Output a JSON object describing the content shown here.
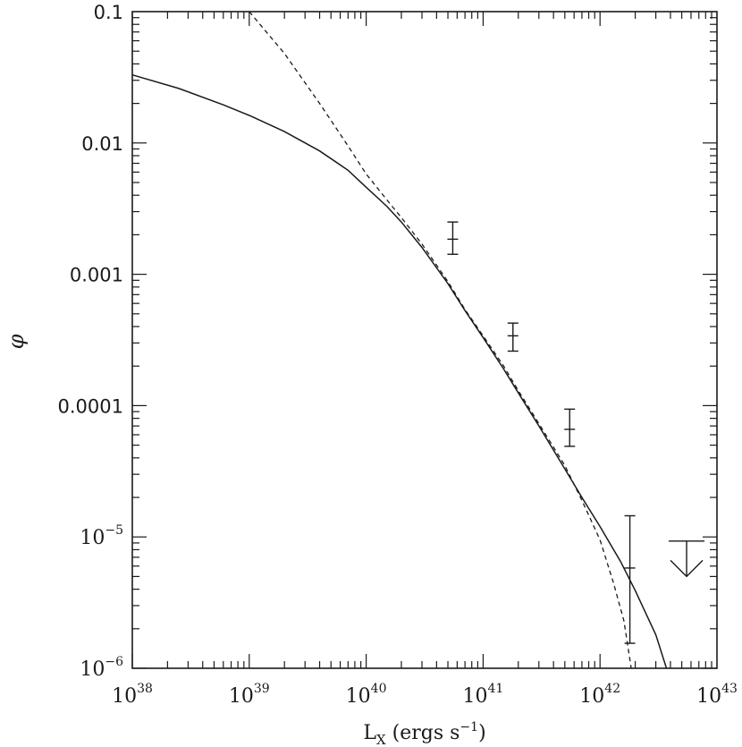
{
  "chart_data": {
    "type": "line",
    "xscale": "log",
    "yscale": "log",
    "xlim": [
      1e+38,
      1e+43
    ],
    "ylim": [
      1e-06,
      0.1
    ],
    "x_ticks": [
      {
        "value": 1e+38,
        "base": "10",
        "exp": "38"
      },
      {
        "value": 1e+39,
        "base": "10",
        "exp": "39"
      },
      {
        "value": 1e+40,
        "base": "10",
        "exp": "40"
      },
      {
        "value": 1e+41,
        "base": "10",
        "exp": "41"
      },
      {
        "value": 1e+42,
        "base": "10",
        "exp": "42"
      },
      {
        "value": 1e+43,
        "base": "10",
        "exp": "43"
      }
    ],
    "y_ticks": [
      {
        "value": 0.1,
        "text": "0.1"
      },
      {
        "value": 0.01,
        "text": "0.01"
      },
      {
        "value": 0.001,
        "text": "0.001"
      },
      {
        "value": 0.0001,
        "text": "0.0001"
      },
      {
        "value": 1e-05,
        "base": "10",
        "exp": "−5"
      },
      {
        "value": 1e-06,
        "base": "10",
        "exp": "−6"
      }
    ],
    "xlabel_parts": {
      "main": "L",
      "sub": "X",
      "rest": " (ergs s",
      "exp": "−1",
      "close": ")"
    },
    "ylabel": "φ",
    "series": [
      {
        "style": "solid",
        "x": [
          1e+38,
          2.5e+38,
          6e+38,
          1e+39,
          2e+39,
          4e+39,
          7e+39,
          1e+40,
          1.5e+40,
          2e+40,
          3e+40,
          5e+40,
          7e+40,
          1e+41,
          1.5e+41,
          2e+41,
          3e+41,
          5e+41,
          7e+41,
          1e+42,
          1.5e+42,
          2e+42,
          3e+42,
          3.7e+42
        ],
        "y": [
          0.033,
          0.026,
          0.0195,
          0.0162,
          0.0122,
          0.0087,
          0.0062,
          0.0046,
          0.0033,
          0.0025,
          0.0016,
          0.00085,
          0.00053,
          0.00033,
          0.00019,
          0.000125,
          7e-05,
          3.3e-05,
          2e-05,
          1.2e-05,
          6.5e-06,
          3.9e-06,
          1.8e-06,
          1e-06
        ]
      },
      {
        "style": "dashed",
        "x": [
          1e+39,
          2e+39,
          4e+39,
          7e+39,
          1e+40,
          1.5e+40,
          2e+40,
          3e+40,
          5e+40,
          7e+40,
          1e+41,
          1.5e+41,
          2e+41,
          3e+41,
          5e+41,
          7e+41,
          1e+42,
          1.3e+42,
          1.6e+42,
          1.85e+42
        ],
        "y": [
          0.1,
          0.048,
          0.02,
          0.0095,
          0.0058,
          0.0037,
          0.0027,
          0.0017,
          0.00088,
          0.00054,
          0.00034,
          0.0002,
          0.00013,
          7.3e-05,
          3.5e-05,
          1.9e-05,
          9.5e-06,
          4.5e-06,
          2.3e-06,
          1e-06
        ]
      }
    ],
    "data_points": [
      {
        "x": 5.5e+40,
        "y": 0.00185,
        "ylo": 0.00142,
        "yhi": 0.0025
      },
      {
        "x": 1.8e+41,
        "y": 0.00034,
        "ylo": 0.00026,
        "yhi": 0.000425
      },
      {
        "x": 5.5e+41,
        "y": 6.6e-05,
        "ylo": 4.9e-05,
        "yhi": 9.4e-05
      },
      {
        "x": 1.8e+42,
        "y": 5.8e-06,
        "ylo": 1.55e-06,
        "yhi": 1.45e-05
      }
    ],
    "upper_limits": [
      {
        "x": 5.5e+42,
        "y": 9.3e-06,
        "to": 5e-06
      }
    ],
    "grid": false
  }
}
